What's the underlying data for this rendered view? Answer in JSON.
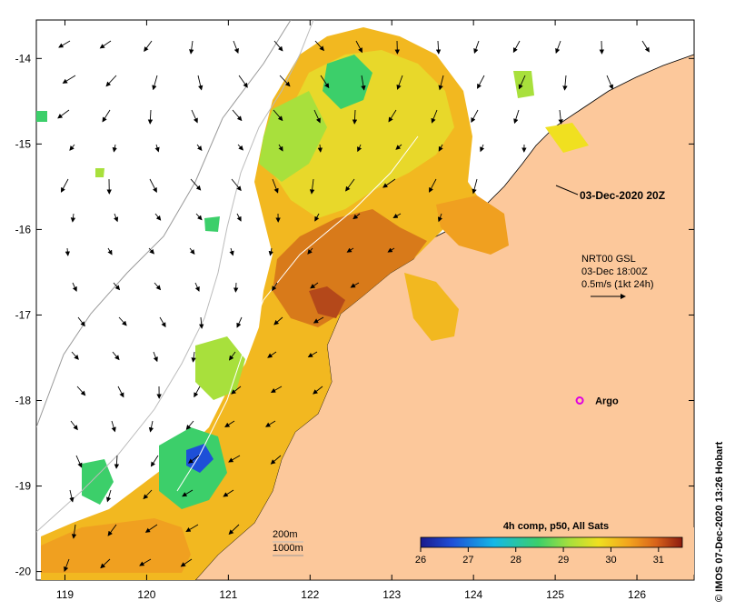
{
  "map": {
    "x_axis_ticks": [
      "119",
      "120",
      "121",
      "122",
      "123",
      "124",
      "125",
      "126"
    ],
    "y_axis_ticks": [
      "-14",
      "-15",
      "-16",
      "-17",
      "-18",
      "-19",
      "-20"
    ],
    "xlim": [
      118.65,
      126.7
    ],
    "ylim": [
      -20.1,
      -13.55
    ],
    "date_label": "03-Dec-2020 20Z",
    "current_legend": {
      "line1": "NRT00 GSL",
      "line2": "03-Dec 18:00Z",
      "line3": "0.5m/s (1kt 24h)"
    },
    "argo_label": "Argo",
    "argo_position": {
      "lon": 125.3,
      "lat": -18.0
    },
    "isobath_labels": {
      "line1": "200m",
      "line2": "1000m"
    },
    "colorbar": {
      "title": "4h comp, p50, All Sats",
      "ticks": [
        "26",
        "27",
        "28",
        "29",
        "30",
        "31"
      ],
      "range": [
        26,
        31.5
      ],
      "colors": [
        "#1a1a8c",
        "#1e4fd8",
        "#14b8e6",
        "#3ccf6a",
        "#a8e03c",
        "#f0e020",
        "#f2a11e",
        "#d8631a",
        "#8c1a0e"
      ]
    },
    "credit": "© IMOS 07-Dec-2020 13:26 Hobart",
    "land_color": "#fcc89b"
  }
}
